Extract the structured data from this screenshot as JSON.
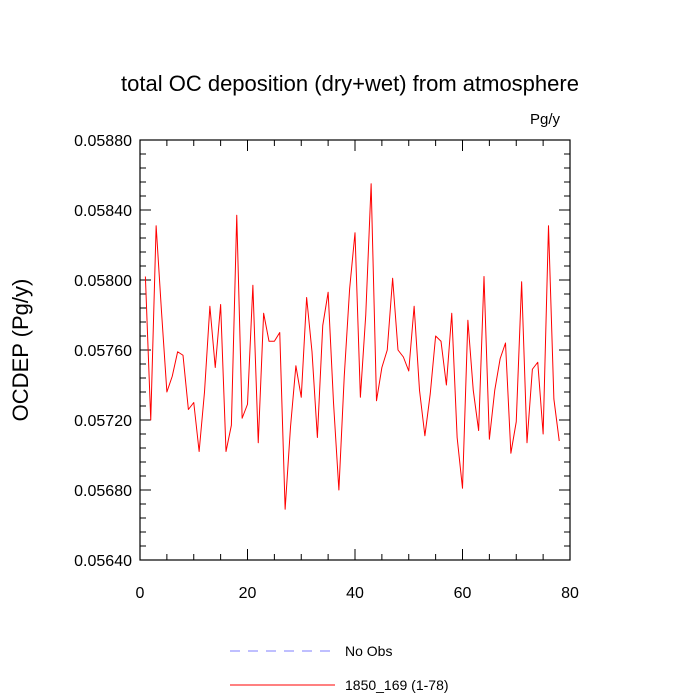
{
  "chart_data": {
    "type": "line",
    "title": "total OC deposition (dry+wet) from atmosphere",
    "units": "Pg/y",
    "ylabel": "OCDEP  (Pg/y)",
    "xlabel": "",
    "xlim": [
      0,
      80
    ],
    "ylim": [
      0.0564,
      0.0588
    ],
    "x_ticks": [
      "0",
      "20",
      "40",
      "60",
      "80"
    ],
    "y_ticks": [
      "0.05640",
      "0.05680",
      "0.05720",
      "0.05760",
      "0.05800",
      "0.05840",
      "0.05880"
    ],
    "grid": false,
    "legend_position": "bottom",
    "series": [
      {
        "name": "1850_169 (1-78)",
        "color": "#ff0000",
        "style": "solid",
        "x": [
          1,
          2,
          3,
          4,
          5,
          6,
          7,
          8,
          9,
          10,
          11,
          12,
          13,
          14,
          15,
          16,
          17,
          18,
          19,
          20,
          21,
          22,
          23,
          24,
          25,
          26,
          27,
          28,
          29,
          30,
          31,
          32,
          33,
          34,
          35,
          36,
          37,
          38,
          39,
          40,
          41,
          42,
          43,
          44,
          45,
          46,
          47,
          48,
          49,
          50,
          51,
          52,
          53,
          54,
          55,
          56,
          57,
          58,
          59,
          60,
          61,
          62,
          63,
          64,
          65,
          66,
          67,
          68,
          69,
          70,
          71,
          72,
          73,
          74,
          75,
          76,
          77,
          78
        ],
        "y": [
          0.05802,
          0.0572,
          0.05831,
          0.05782,
          0.05736,
          0.05745,
          0.05759,
          0.05757,
          0.05726,
          0.0573,
          0.05702,
          0.05736,
          0.05785,
          0.0575,
          0.05786,
          0.05702,
          0.05717,
          0.05837,
          0.05721,
          0.05729,
          0.05797,
          0.05707,
          0.05781,
          0.05765,
          0.05765,
          0.0577,
          0.05669,
          0.05716,
          0.05751,
          0.05733,
          0.0579,
          0.05759,
          0.0571,
          0.05774,
          0.05793,
          0.0573,
          0.0568,
          0.05745,
          0.05795,
          0.05827,
          0.05733,
          0.0578,
          0.05855,
          0.05731,
          0.0575,
          0.0576,
          0.05801,
          0.0576,
          0.05756,
          0.05748,
          0.05785,
          0.05737,
          0.05711,
          0.05735,
          0.05768,
          0.05765,
          0.0574,
          0.05781,
          0.0571,
          0.05681,
          0.05777,
          0.05737,
          0.05714,
          0.05802,
          0.05709,
          0.05737,
          0.05755,
          0.05764,
          0.05701,
          0.05719,
          0.05799,
          0.05707,
          0.05749,
          0.05753,
          0.05712,
          0.05831,
          0.05732,
          0.05708
        ]
      },
      {
        "name": "No Obs",
        "color": "#7f7fff",
        "style": "dashed",
        "x": [],
        "y": []
      }
    ]
  }
}
